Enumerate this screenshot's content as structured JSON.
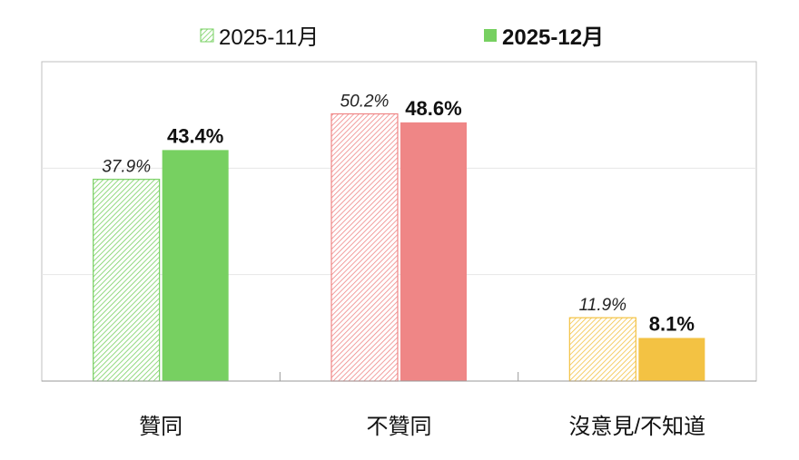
{
  "chart_data": {
    "type": "bar",
    "categories": [
      "贊同",
      "不贊同",
      "沒意見/不知道"
    ],
    "series": [
      {
        "name": "2025-11月",
        "values": [
          37.9,
          50.2,
          11.9
        ],
        "labels": [
          "37.9%",
          "50.2%",
          "11.9%"
        ],
        "style": "hatched"
      },
      {
        "name": "2025-12月",
        "values": [
          43.4,
          48.6,
          8.1
        ],
        "labels": [
          "43.4%",
          "48.6%",
          "8.1%"
        ],
        "style": "solid"
      }
    ],
    "category_colors": [
      "#77d061",
      "#ef8686",
      "#f3c243"
    ],
    "legend_color": "#77d061",
    "ylim": [
      0,
      60
    ],
    "grid": true,
    "legend_position": "top-center",
    "title": "",
    "xlabel": "",
    "ylabel": ""
  }
}
